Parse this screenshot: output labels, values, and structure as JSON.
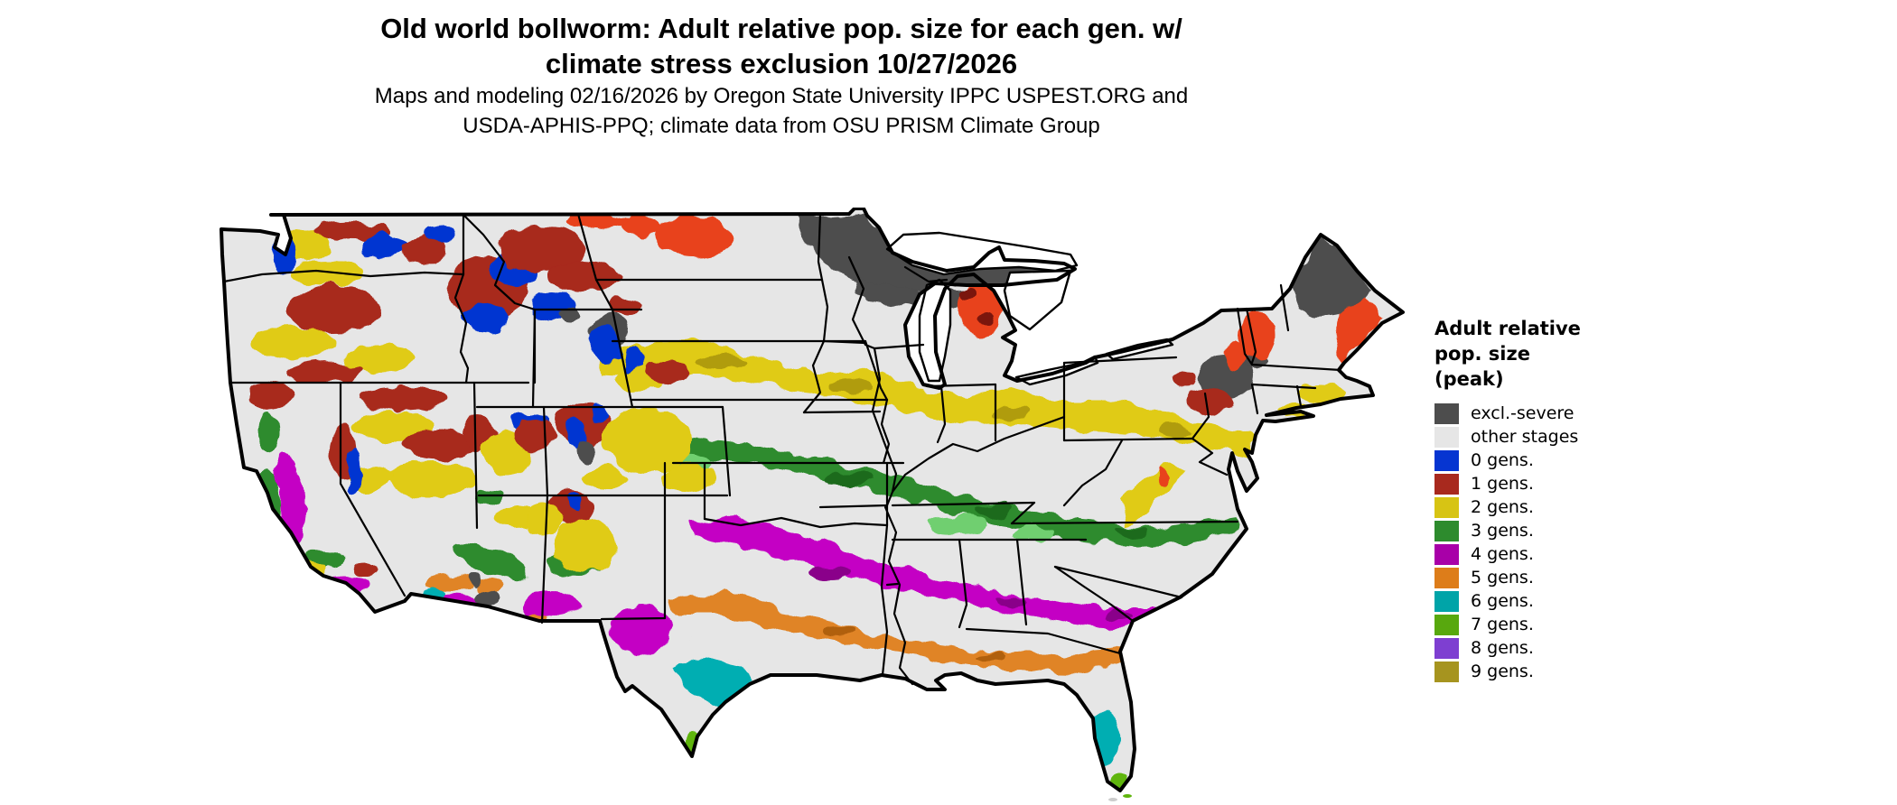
{
  "title": {
    "line1": "Old world bollworm: Adult relative pop. size for each gen. w/",
    "line2": "climate stress exclusion 10/27/2026"
  },
  "subtitle": {
    "line1": "Maps and modeling 02/16/2026 by Oregon State University IPPC USPEST.ORG and",
    "line2": "USDA-APHIS-PPQ; climate data from OSU PRISM Climate Group"
  },
  "legend": {
    "title_line1": "Adult relative",
    "title_line2": "pop. size",
    "title_line3": "(peak)",
    "items": [
      {
        "label": "excl.-severe",
        "color": "#4d4d4d"
      },
      {
        "label": "other stages",
        "color": "#e6e6e6"
      },
      {
        "label": "0 gens.",
        "color": "#0635d1"
      },
      {
        "label": "1 gens.",
        "color": "#a8291e"
      },
      {
        "label": "2 gens.",
        "color": "#d7c414"
      },
      {
        "label": "3 gens.",
        "color": "#2d8b2d"
      },
      {
        "label": "4 gens.",
        "color": "#a800a8"
      },
      {
        "label": "5 gens.",
        "color": "#dd7d1a"
      },
      {
        "label": "6 gens.",
        "color": "#00a4a8"
      },
      {
        "label": "7 gens.",
        "color": "#58a80e"
      },
      {
        "label": "8 gens.",
        "color": "#7e3fd1"
      },
      {
        "label": "9 gens.",
        "color": "#a6941f"
      }
    ]
  },
  "colors": {
    "background": "#ffffff",
    "land_other_stages": "#e6e6e6",
    "map_outline": "#000000",
    "bright_red_shade": "#e8421a",
    "dark_shade_red": "#7a1208"
  }
}
